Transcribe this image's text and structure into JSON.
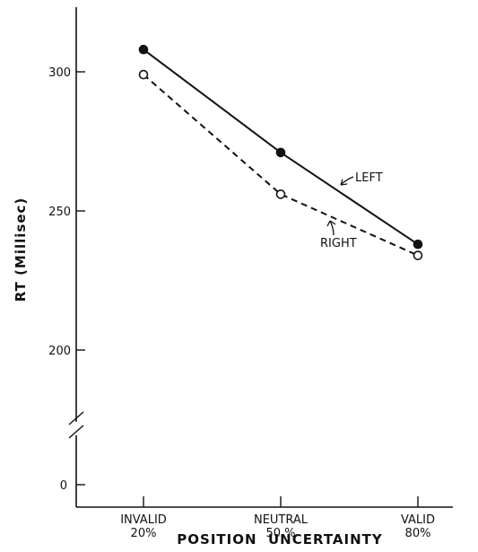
{
  "chart_data": {
    "type": "line",
    "categories": [
      {
        "line1": "INVALID",
        "line2": "20%"
      },
      {
        "line1": "NEUTRAL",
        "line2": "50 %"
      },
      {
        "line1": "VALID",
        "line2": "80%"
      }
    ],
    "series": [
      {
        "name": "LEFT",
        "values": [
          308,
          271,
          238
        ],
        "style": "solid",
        "marker": "filled-circle",
        "color": "#111111"
      },
      {
        "name": "RIGHT",
        "values": [
          299,
          256,
          234
        ],
        "style": "dashed",
        "marker": "open-circle",
        "color": "#111111"
      }
    ],
    "xlabel": "POSITION  UNCERTAINTY",
    "ylabel": "RT (Millisec)",
    "ylim": [
      180,
      325
    ],
    "axis_break": true,
    "yticks": [
      {
        "value": 300,
        "label": "300"
      },
      {
        "value": 250,
        "label": "250"
      },
      {
        "value": 200,
        "label": "200"
      }
    ],
    "zero_tick_label": "0",
    "grid": false,
    "legend": "inline-arrows"
  }
}
